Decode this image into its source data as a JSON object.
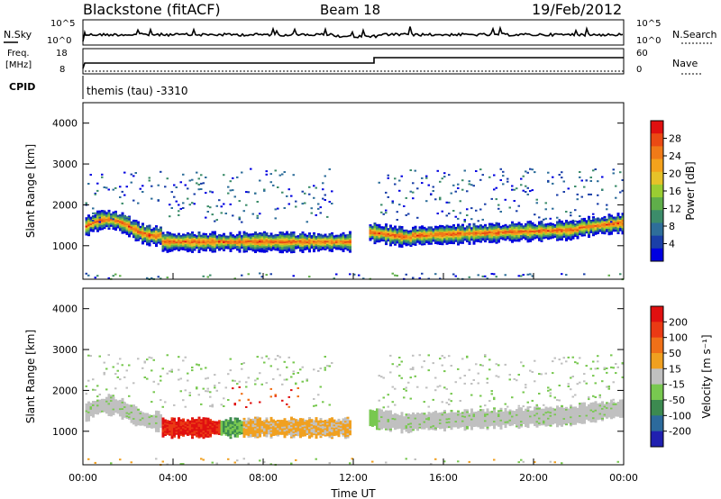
{
  "header": {
    "station": "Blackstone (fitACF)",
    "beam": "Beam 18",
    "date": "19/Feb/2012"
  },
  "top_panels": {
    "noise": {
      "left_label": "N.Sky",
      "right_label": "N.Search",
      "ticks_left": [
        "10^5",
        "10^0"
      ],
      "ticks_right": [
        "10^5",
        "10^0"
      ]
    },
    "freq": {
      "left_label": "Freq.",
      "left_unit": "[MHz]",
      "right_label": "Nave",
      "ticks_left": [
        "18",
        "8"
      ],
      "ticks_right": [
        "60",
        "0"
      ]
    },
    "cpid": {
      "label": "CPID",
      "text": "themis (tau) -3310"
    }
  },
  "chart_data": [
    {
      "type": "heatmap",
      "name": "power",
      "ylabel": "Slant Range [km]",
      "ylim": [
        180,
        4500
      ],
      "yticks": [
        1000,
        2000,
        3000,
        4000
      ],
      "xlim_hours": [
        0,
        24
      ],
      "xticks": [
        "00:00",
        "04:00",
        "08:00",
        "12:00",
        "16:00",
        "20:00",
        "00:00"
      ],
      "colorbar": {
        "label": "Power [dB]",
        "ticks": [
          "4",
          "8",
          "12",
          "16",
          "20",
          "24",
          "28"
        ],
        "colors": [
          "#0000e0",
          "#1a3fa8",
          "#2e6e9a",
          "#3c8c6a",
          "#5fae4a",
          "#9acd32",
          "#e6c229",
          "#f4a21c",
          "#f07a18",
          "#ea4a14",
          "#e01010"
        ]
      },
      "bands": [
        {
          "t": [
            0.0,
            3.5
          ],
          "center": 1450,
          "width": 300,
          "level": "mixed"
        },
        {
          "t": [
            3.5,
            7.0
          ],
          "center": 1100,
          "width": 250,
          "level": "high"
        },
        {
          "t": [
            7.0,
            11.8
          ],
          "center": 1100,
          "width": 220,
          "level": "high"
        },
        {
          "t": [
            12.5,
            14.5
          ],
          "center": 1350,
          "width": 250,
          "level": "high"
        },
        {
          "t": [
            14.5,
            22.0
          ],
          "center": 1250,
          "width": 250,
          "level": "high"
        },
        {
          "t": [
            22.0,
            24.0
          ],
          "center": 1450,
          "width": 250,
          "level": "high"
        }
      ]
    },
    {
      "type": "heatmap",
      "name": "velocity",
      "ylabel": "Slant Range [km]",
      "xlabel": "Time UT",
      "ylim": [
        180,
        4500
      ],
      "yticks": [
        1000,
        2000,
        3000,
        4000
      ],
      "xlim_hours": [
        0,
        24
      ],
      "xticks": [
        "00:00",
        "04:00",
        "08:00",
        "12:00",
        "16:00",
        "20:00",
        "00:00"
      ],
      "colorbar": {
        "label": "Velocity [m s⁻¹]",
        "ticks": [
          "200",
          "100",
          "50",
          "15",
          "-15",
          "-50",
          "-100",
          "-200"
        ],
        "colors": [
          "#2020b0",
          "#2c6a9c",
          "#3c8a50",
          "#78c850",
          "#c0c0c0",
          "#f0a020",
          "#f07018",
          "#ea3a14",
          "#e01010"
        ]
      }
    }
  ]
}
